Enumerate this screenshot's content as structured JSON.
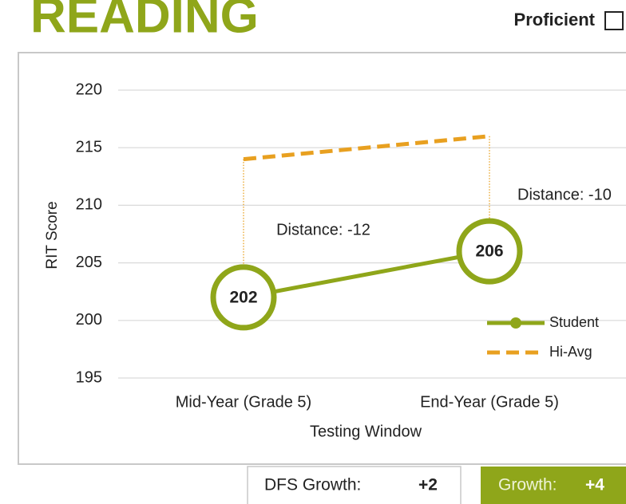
{
  "header": {
    "title": "READING",
    "proficient": "Proficient"
  },
  "chart_data": {
    "type": "line",
    "y_label": "RIT Score",
    "x_label": "Testing Window",
    "categories": [
      "Mid-Year (Grade 5)",
      "End-Year (Grade 5)"
    ],
    "series": [
      {
        "name": "Student",
        "color": "#8fa61a",
        "values": [
          202,
          206
        ]
      },
      {
        "name": "Hi-Avg",
        "color": "#e8a020",
        "values": [
          214,
          216
        ]
      }
    ],
    "annotations": [
      "Distance: -12",
      "Distance: -10"
    ],
    "ylim": [
      195,
      220
    ],
    "yticks": [
      195,
      200,
      205,
      210,
      215,
      220
    ],
    "grid": true,
    "legend": "lower right"
  },
  "footer": {
    "dfs_label": "DFS Growth:",
    "dfs_value": "+2",
    "growth_label": "Growth:",
    "growth_value": "+4"
  }
}
